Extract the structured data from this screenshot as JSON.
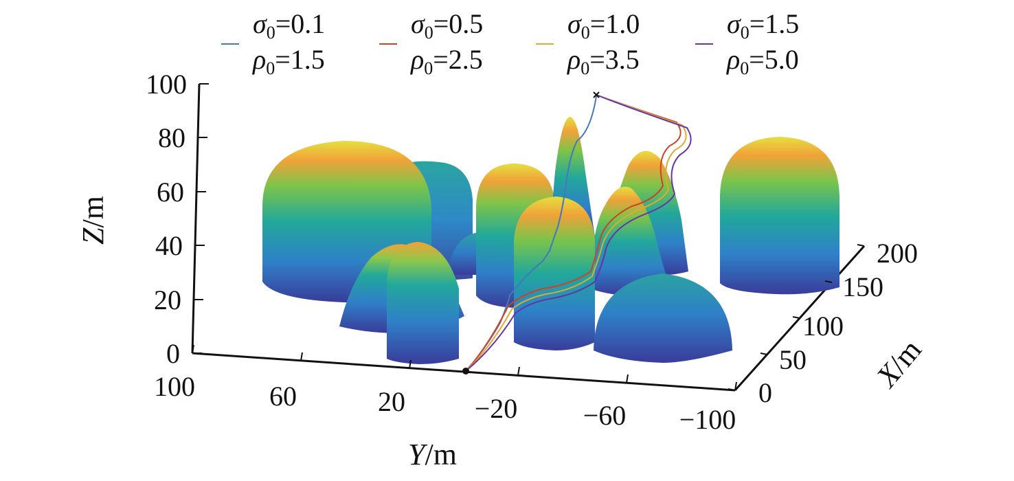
{
  "chart_data": {
    "type": "surface3d-with-lines",
    "legend_placement": "top",
    "legend": [
      {
        "sigma": "0.1",
        "rho": "1.5",
        "color": "#4477bb"
      },
      {
        "sigma": "0.5",
        "rho": "2.5",
        "color": "#cc4422"
      },
      {
        "sigma": "1.0",
        "rho": "3.5",
        "color": "#ddaa33"
      },
      {
        "sigma": "1.5",
        "rho": "5.0",
        "color": "#6633aa"
      }
    ],
    "legend_symbols": {
      "sigma": "σ",
      "rho": "ρ",
      "sub": "0",
      "eq": "="
    },
    "axes": {
      "x": {
        "label_var": "X",
        "label_unit": "/m",
        "range": [
          0,
          200
        ],
        "ticks": [
          "0",
          "50",
          "100",
          "150",
          "200"
        ]
      },
      "y": {
        "label_var": "Y",
        "label_unit": "/m",
        "range": [
          100,
          -100
        ],
        "ticks": [
          "100",
          "60",
          "20",
          "−20",
          "−60",
          "−100"
        ]
      },
      "z": {
        "label_var": "Z",
        "label_unit": "/m",
        "range": [
          0,
          100
        ],
        "ticks": [
          "0",
          "20",
          "40",
          "60",
          "80",
          "100"
        ]
      }
    },
    "grid": false,
    "colormap": [
      "#3b3f9c",
      "#2f7fc6",
      "#22a69a",
      "#6cc04a",
      "#c8c83a",
      "#f2a238",
      "#e8e040"
    ],
    "start_point_color": "#111111",
    "goal_point_color": "#111111"
  }
}
